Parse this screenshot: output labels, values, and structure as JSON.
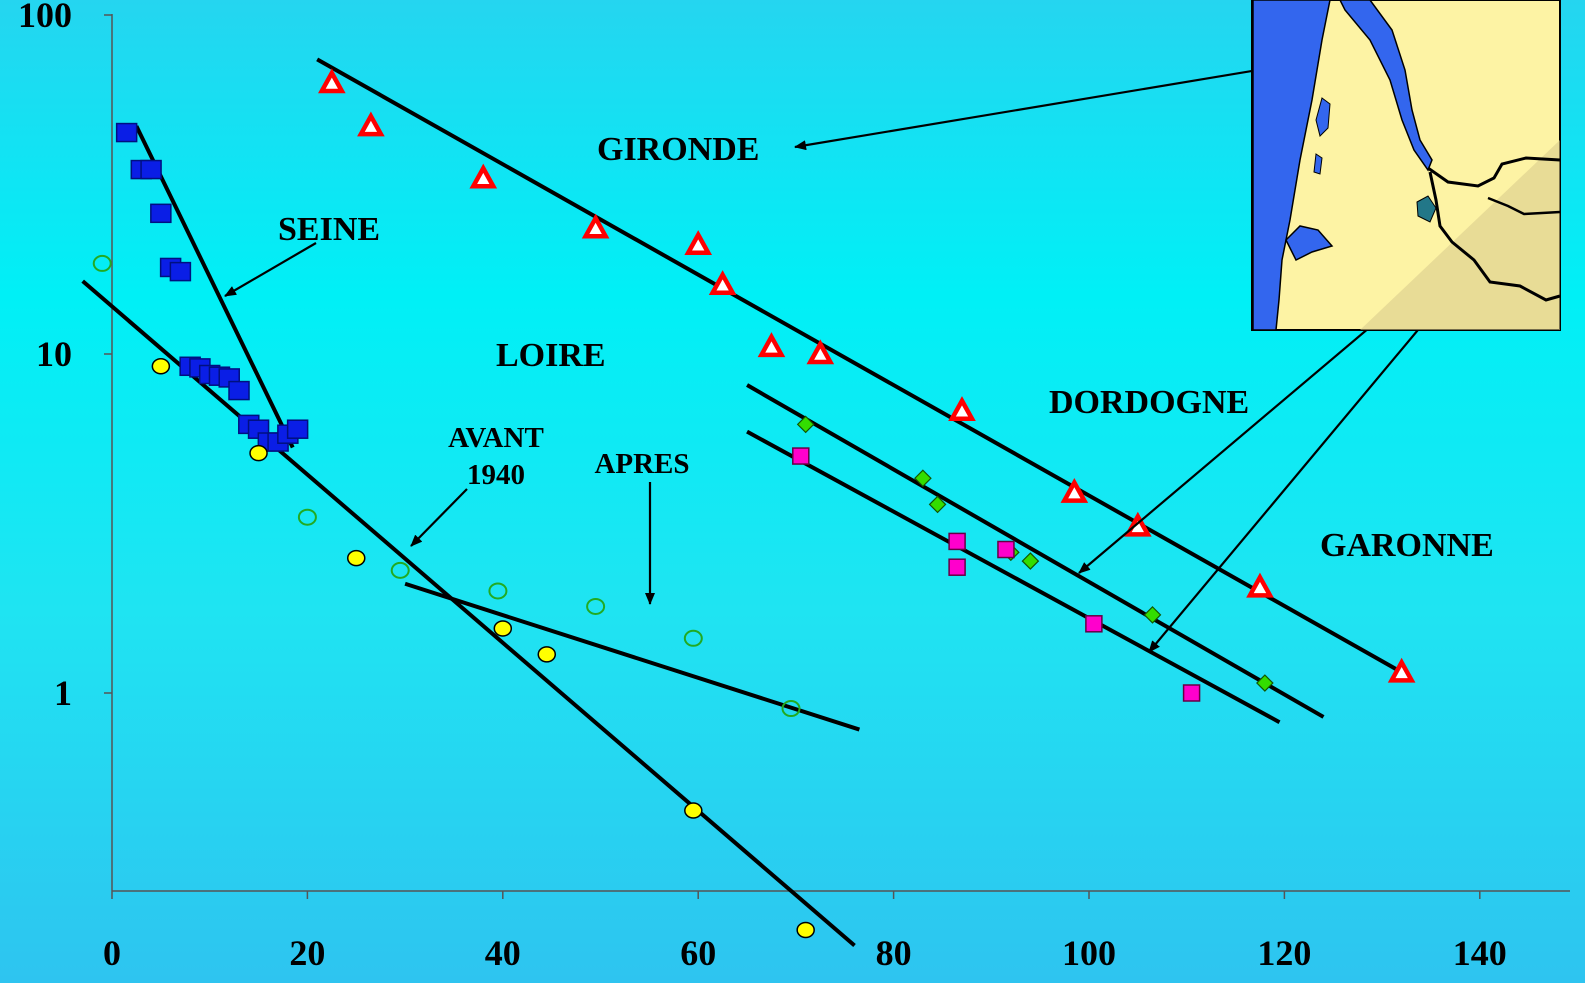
{
  "chart_data": {
    "type": "scatter",
    "y_scale": "log",
    "xlim": [
      0,
      150
    ],
    "ylim": [
      0.2,
      100
    ],
    "x_ticks": [
      0,
      20,
      40,
      60,
      80,
      100,
      120,
      140
    ],
    "y_ticks": [
      1,
      10,
      100
    ],
    "x_tick_labels": [
      "0",
      "20",
      "40",
      "60",
      "80",
      "100",
      "120",
      "140"
    ],
    "y_tick_labels": [
      "1",
      "10",
      "100"
    ],
    "grid": false,
    "series": [
      {
        "name": "SEINE",
        "marker": "square",
        "color": "#0a1ee6",
        "points": [
          [
            1.5,
            45
          ],
          [
            3,
            35
          ],
          [
            4,
            35
          ],
          [
            5,
            26
          ],
          [
            6,
            18
          ],
          [
            7,
            17.5
          ],
          [
            8,
            9.2
          ],
          [
            9,
            9.1
          ],
          [
            10,
            8.7
          ],
          [
            11,
            8.6
          ],
          [
            12,
            8.5
          ],
          [
            13,
            7.8
          ],
          [
            14,
            6.2
          ],
          [
            15,
            6
          ],
          [
            16,
            5.5
          ],
          [
            17,
            5.5
          ],
          [
            18,
            5.8
          ],
          [
            19,
            6
          ]
        ],
        "fit": [
          [
            2.5,
            47
          ],
          [
            18.5,
            5.3
          ]
        ]
      },
      {
        "name": "LOIRE AVANT 1940",
        "marker": "circle",
        "color": "#ffff00",
        "points": [
          [
            5,
            9.2
          ],
          [
            15,
            5.1
          ],
          [
            25,
            2.5
          ],
          [
            40,
            1.55
          ],
          [
            44.5,
            1.3
          ],
          [
            59.5,
            0.45
          ],
          [
            71,
            0.2
          ]
        ],
        "fit": [
          [
            -3,
            16.4
          ],
          [
            76,
            0.18
          ]
        ]
      },
      {
        "name": "LOIRE APRES",
        "marker": "circle-open",
        "color": "#22aa22",
        "points": [
          [
            -1,
            18.5
          ],
          [
            20,
            3.3
          ],
          [
            29.5,
            2.3
          ],
          [
            39.5,
            2
          ],
          [
            49.5,
            1.8
          ],
          [
            59.5,
            1.45
          ],
          [
            69.5,
            0.9
          ]
        ],
        "fit": [
          [
            30,
            2.1
          ],
          [
            76.5,
            0.78
          ]
        ]
      },
      {
        "name": "GIRONDE",
        "marker": "triangle",
        "color": "#ff0000",
        "points": [
          [
            22.5,
            63
          ],
          [
            26.5,
            47
          ],
          [
            38,
            33
          ],
          [
            49.5,
            23.5
          ],
          [
            60,
            21
          ],
          [
            62.5,
            16
          ],
          [
            67.5,
            10.5
          ],
          [
            72.5,
            10
          ],
          [
            87,
            6.8
          ],
          [
            98.5,
            3.9
          ],
          [
            105,
            3.1
          ],
          [
            117.5,
            2.05
          ],
          [
            132,
            1.15
          ]
        ],
        "fit": [
          [
            21,
            74
          ],
          [
            132.5,
            1.13
          ]
        ]
      },
      {
        "name": "DORDOGNE",
        "marker": "diamond",
        "color": "#33dd00",
        "points": [
          [
            71,
            6.2
          ],
          [
            83,
            4.3
          ],
          [
            84.5,
            3.6
          ],
          [
            92,
            2.6
          ],
          [
            94,
            2.45
          ],
          [
            106.5,
            1.7
          ],
          [
            118,
            1.07
          ]
        ],
        "fit": [
          [
            65,
            8.1
          ],
          [
            124,
            0.85
          ]
        ]
      },
      {
        "name": "GARONNE",
        "marker": "square",
        "color": "#ff00cc",
        "points": [
          [
            70.5,
            5
          ],
          [
            86.5,
            2.8
          ],
          [
            86.5,
            2.35
          ],
          [
            91.5,
            2.65
          ],
          [
            100.5,
            1.6
          ],
          [
            110.5,
            1
          ]
        ],
        "fit": [
          [
            65,
            5.9
          ],
          [
            119.5,
            0.82
          ]
        ]
      }
    ],
    "labels": {
      "seine": "SEINE",
      "loire": "LOIRE",
      "avant_1": "AVANT",
      "avant_2": "1940",
      "apres": "APRES",
      "gironde": "GIRONDE",
      "dordogne": "DORDOGNE",
      "garonne": "GARONNE"
    }
  }
}
